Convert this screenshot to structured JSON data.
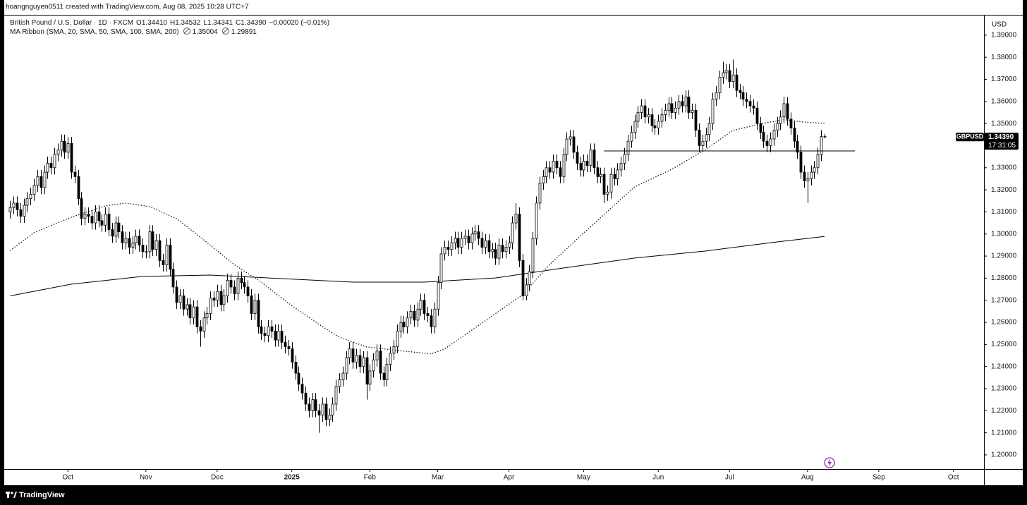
{
  "header": {
    "attribution": "hoangnguyen0511 created with TradingView.com, Aug 08, 2025 10:28 UTC+7",
    "footer_brand": "TradingView"
  },
  "chart_data": {
    "type": "candlestick",
    "title": "British Pound / U.S. Dollar · 1D · FXCM",
    "ohlc_labels": [
      "O1.34410",
      "H1.34532",
      "L1.34341",
      "C1.34390",
      "−0.00020 (−0.01%)"
    ],
    "indicator_title": "MA Ribbon (SMA, 20, SMA, 50, SMA, 100, SMA, 200)",
    "currency": "USD",
    "symbol": "GBPUSD",
    "last_price_label": "1.34390",
    "countdown": "17:31:05",
    "up_color": "#ffffff",
    "down_color": "#000000",
    "edge_color": "#000000",
    "open": [
      1.31,
      1.312,
      1.314,
      1.311,
      1.308,
      1.313,
      1.316,
      1.318,
      1.322,
      1.326,
      1.321,
      1.328,
      1.332,
      1.33,
      1.336,
      1.338,
      1.342,
      1.337,
      1.341,
      1.328,
      1.326,
      1.316,
      1.307,
      1.309,
      1.308,
      1.305,
      1.31,
      1.306,
      1.304,
      1.309,
      1.302,
      1.299,
      1.305,
      1.301,
      1.296,
      1.298,
      1.294,
      1.296,
      1.299,
      1.295,
      1.292,
      1.292,
      1.301,
      1.293,
      1.297,
      1.288,
      1.286,
      1.295,
      1.284,
      1.276,
      1.269,
      1.272,
      1.266,
      1.268,
      1.262,
      1.267,
      1.258,
      1.256,
      1.262,
      1.264,
      1.271,
      1.27,
      1.274,
      1.268,
      1.272,
      1.279,
      1.276,
      1.273,
      1.28,
      1.278,
      1.276,
      1.272,
      1.264,
      1.27,
      1.258,
      1.255,
      1.254,
      1.258,
      1.256,
      1.252,
      1.256,
      1.251,
      1.249,
      1.248,
      1.242,
      1.237,
      1.232,
      1.228,
      1.223,
      1.22,
      1.225,
      1.22,
      1.218,
      1.223,
      1.216,
      1.218,
      1.223,
      1.231,
      1.234,
      1.237,
      1.244,
      1.248,
      1.242,
      1.245,
      1.24,
      1.244,
      1.232,
      1.238,
      1.243,
      1.247,
      1.237,
      1.234,
      1.241,
      1.246,
      1.249,
      1.256,
      1.26,
      1.258,
      1.262,
      1.265,
      1.261,
      1.266,
      1.27,
      1.264,
      1.263,
      1.258,
      1.266,
      1.278,
      1.291,
      1.294,
      1.293,
      1.296,
      1.298,
      1.294,
      1.298,
      1.299,
      1.296,
      1.3,
      1.301,
      1.298,
      1.294,
      1.297,
      1.292,
      1.293,
      1.289,
      1.295,
      1.292,
      1.294,
      1.296,
      1.305,
      1.309,
      1.288,
      1.272,
      1.277,
      1.283,
      1.298,
      1.314,
      1.323,
      1.326,
      1.33,
      1.328,
      1.333,
      1.33,
      1.326,
      1.336,
      1.343,
      1.344,
      1.337,
      1.332,
      1.329,
      1.333,
      1.331,
      1.338,
      1.33,
      1.326,
      1.327,
      1.318,
      1.319,
      1.327,
      1.325,
      1.329,
      1.332,
      1.336,
      1.342,
      1.346,
      1.351,
      1.355,
      1.358,
      1.353,
      1.354,
      1.349,
      1.348,
      1.351,
      1.354,
      1.356,
      1.359,
      1.355,
      1.357,
      1.36,
      1.358,
      1.362,
      1.355,
      1.356,
      1.347,
      1.34,
      1.342,
      1.345,
      1.35,
      1.361,
      1.364,
      1.371,
      1.373,
      1.374,
      1.369,
      1.372,
      1.365,
      1.364,
      1.361,
      1.36,
      1.358,
      1.357,
      1.35,
      1.346,
      1.342,
      1.34,
      1.343,
      1.347,
      1.35,
      1.353,
      1.359,
      1.352,
      1.348,
      1.342,
      1.337,
      1.328,
      1.324,
      1.325,
      1.328,
      1.33,
      1.336,
      1.3441
    ],
    "high": [
      1.315,
      1.317,
      1.317,
      1.314,
      1.316,
      1.319,
      1.321,
      1.325,
      1.329,
      1.329,
      1.331,
      1.335,
      1.335,
      1.339,
      1.341,
      1.345,
      1.345,
      1.344,
      1.344,
      1.331,
      1.329,
      1.319,
      1.312,
      1.312,
      1.311,
      1.313,
      1.313,
      1.309,
      1.312,
      1.312,
      1.305,
      1.308,
      1.308,
      1.304,
      1.301,
      1.301,
      1.299,
      1.302,
      1.302,
      1.298,
      1.295,
      1.304,
      1.304,
      1.3,
      1.3,
      1.291,
      1.298,
      1.298,
      1.287,
      1.279,
      1.275,
      1.275,
      1.271,
      1.271,
      1.27,
      1.27,
      1.261,
      1.265,
      1.267,
      1.274,
      1.274,
      1.277,
      1.277,
      1.275,
      1.282,
      1.282,
      1.279,
      1.283,
      1.283,
      1.281,
      1.279,
      1.275,
      1.273,
      1.273,
      1.261,
      1.258,
      1.261,
      1.261,
      1.259,
      1.259,
      1.259,
      1.254,
      1.252,
      1.251,
      1.245,
      1.24,
      1.235,
      1.231,
      1.226,
      1.228,
      1.228,
      1.223,
      1.226,
      1.226,
      1.221,
      1.226,
      1.234,
      1.237,
      1.24,
      1.247,
      1.251,
      1.251,
      1.248,
      1.248,
      1.247,
      1.247,
      1.241,
      1.246,
      1.25,
      1.25,
      1.24,
      1.244,
      1.249,
      1.252,
      1.259,
      1.263,
      1.263,
      1.265,
      1.268,
      1.268,
      1.269,
      1.273,
      1.273,
      1.267,
      1.266,
      1.269,
      1.281,
      1.294,
      1.297,
      1.297,
      1.299,
      1.301,
      1.301,
      1.301,
      1.302,
      1.302,
      1.303,
      1.304,
      1.304,
      1.301,
      1.3,
      1.3,
      1.296,
      1.296,
      1.298,
      1.298,
      1.297,
      1.299,
      1.308,
      1.314,
      1.312,
      1.291,
      1.28,
      1.286,
      1.301,
      1.317,
      1.326,
      1.329,
      1.333,
      1.333,
      1.336,
      1.336,
      1.333,
      1.339,
      1.346,
      1.347,
      1.347,
      1.34,
      1.335,
      1.336,
      1.336,
      1.341,
      1.341,
      1.333,
      1.33,
      1.33,
      1.322,
      1.33,
      1.33,
      1.332,
      1.335,
      1.339,
      1.345,
      1.349,
      1.354,
      1.358,
      1.361,
      1.361,
      1.357,
      1.357,
      1.352,
      1.354,
      1.357,
      1.359,
      1.362,
      1.362,
      1.36,
      1.363,
      1.363,
      1.365,
      1.365,
      1.359,
      1.359,
      1.35,
      1.345,
      1.348,
      1.353,
      1.364,
      1.367,
      1.374,
      1.378,
      1.377,
      1.377,
      1.379,
      1.375,
      1.368,
      1.367,
      1.364,
      1.363,
      1.361,
      1.36,
      1.353,
      1.349,
      1.345,
      1.346,
      1.35,
      1.353,
      1.356,
      1.362,
      1.362,
      1.355,
      1.351,
      1.345,
      1.34,
      1.331,
      1.328,
      1.331,
      1.333,
      1.339,
      1.347,
      1.34532
    ],
    "low": [
      1.307,
      1.309,
      1.308,
      1.305,
      1.305,
      1.31,
      1.313,
      1.315,
      1.319,
      1.318,
      1.318,
      1.325,
      1.327,
      1.327,
      1.333,
      1.335,
      1.334,
      1.334,
      1.325,
      1.323,
      1.313,
      1.304,
      1.304,
      1.305,
      1.302,
      1.302,
      1.303,
      1.301,
      1.301,
      1.299,
      1.296,
      1.296,
      1.298,
      1.293,
      1.293,
      1.291,
      1.291,
      1.293,
      1.292,
      1.289,
      1.289,
      1.289,
      1.29,
      1.29,
      1.285,
      1.283,
      1.283,
      1.281,
      1.273,
      1.266,
      1.266,
      1.263,
      1.263,
      1.259,
      1.259,
      1.255,
      1.249,
      1.253,
      1.259,
      1.261,
      1.267,
      1.267,
      1.265,
      1.265,
      1.269,
      1.273,
      1.27,
      1.27,
      1.275,
      1.273,
      1.269,
      1.261,
      1.261,
      1.255,
      1.252,
      1.251,
      1.251,
      1.253,
      1.249,
      1.249,
      1.248,
      1.246,
      1.245,
      1.239,
      1.234,
      1.229,
      1.225,
      1.22,
      1.217,
      1.217,
      1.217,
      1.21,
      1.215,
      1.213,
      1.213,
      1.215,
      1.22,
      1.228,
      1.231,
      1.234,
      1.241,
      1.239,
      1.239,
      1.237,
      1.237,
      1.225,
      1.229,
      1.235,
      1.24,
      1.234,
      1.231,
      1.231,
      1.238,
      1.243,
      1.246,
      1.253,
      1.255,
      1.255,
      1.259,
      1.258,
      1.258,
      1.263,
      1.261,
      1.26,
      1.255,
      1.255,
      1.263,
      1.275,
      1.288,
      1.29,
      1.29,
      1.293,
      1.291,
      1.291,
      1.295,
      1.293,
      1.293,
      1.297,
      1.295,
      1.291,
      1.291,
      1.289,
      1.289,
      1.286,
      1.286,
      1.289,
      1.289,
      1.291,
      1.293,
      1.302,
      1.285,
      1.27,
      1.27,
      1.274,
      1.28,
      1.295,
      1.311,
      1.32,
      1.323,
      1.325,
      1.325,
      1.327,
      1.323,
      1.323,
      1.333,
      1.34,
      1.334,
      1.329,
      1.326,
      1.326,
      1.328,
      1.328,
      1.327,
      1.323,
      1.323,
      1.314,
      1.315,
      1.316,
      1.322,
      1.322,
      1.326,
      1.329,
      1.333,
      1.339,
      1.343,
      1.348,
      1.352,
      1.35,
      1.35,
      1.346,
      1.345,
      1.345,
      1.348,
      1.351,
      1.353,
      1.352,
      1.352,
      1.354,
      1.355,
      1.355,
      1.352,
      1.352,
      1.344,
      1.337,
      1.337,
      1.339,
      1.342,
      1.347,
      1.358,
      1.361,
      1.368,
      1.37,
      1.366,
      1.366,
      1.362,
      1.361,
      1.358,
      1.357,
      1.355,
      1.354,
      1.347,
      1.343,
      1.339,
      1.337,
      1.337,
      1.34,
      1.344,
      1.347,
      1.35,
      1.349,
      1.345,
      1.339,
      1.334,
      1.325,
      1.321,
      1.314,
      1.322,
      1.325,
      1.327,
      1.333,
      1.34341
    ],
    "close": [
      1.312,
      1.314,
      1.311,
      1.308,
      1.313,
      1.316,
      1.318,
      1.322,
      1.326,
      1.321,
      1.328,
      1.332,
      1.33,
      1.336,
      1.338,
      1.342,
      1.337,
      1.341,
      1.328,
      1.326,
      1.316,
      1.307,
      1.309,
      1.308,
      1.305,
      1.31,
      1.306,
      1.304,
      1.309,
      1.302,
      1.299,
      1.305,
      1.301,
      1.296,
      1.298,
      1.294,
      1.296,
      1.299,
      1.295,
      1.292,
      1.292,
      1.301,
      1.293,
      1.297,
      1.288,
      1.286,
      1.295,
      1.284,
      1.276,
      1.269,
      1.272,
      1.266,
      1.268,
      1.262,
      1.267,
      1.258,
      1.256,
      1.262,
      1.264,
      1.271,
      1.27,
      1.274,
      1.268,
      1.272,
      1.279,
      1.276,
      1.273,
      1.28,
      1.278,
      1.276,
      1.272,
      1.264,
      1.27,
      1.258,
      1.255,
      1.254,
      1.258,
      1.256,
      1.252,
      1.256,
      1.251,
      1.249,
      1.248,
      1.242,
      1.237,
      1.232,
      1.228,
      1.223,
      1.22,
      1.225,
      1.22,
      1.218,
      1.223,
      1.216,
      1.218,
      1.223,
      1.231,
      1.234,
      1.237,
      1.244,
      1.248,
      1.242,
      1.245,
      1.24,
      1.244,
      1.232,
      1.238,
      1.243,
      1.247,
      1.237,
      1.234,
      1.241,
      1.246,
      1.249,
      1.256,
      1.26,
      1.258,
      1.262,
      1.265,
      1.261,
      1.266,
      1.27,
      1.264,
      1.263,
      1.258,
      1.266,
      1.278,
      1.291,
      1.294,
      1.293,
      1.296,
      1.298,
      1.294,
      1.298,
      1.299,
      1.296,
      1.3,
      1.301,
      1.298,
      1.294,
      1.297,
      1.292,
      1.293,
      1.289,
      1.295,
      1.292,
      1.294,
      1.296,
      1.305,
      1.309,
      1.288,
      1.272,
      1.277,
      1.283,
      1.298,
      1.314,
      1.323,
      1.326,
      1.33,
      1.328,
      1.333,
      1.33,
      1.326,
      1.336,
      1.343,
      1.344,
      1.337,
      1.332,
      1.329,
      1.333,
      1.331,
      1.338,
      1.33,
      1.326,
      1.327,
      1.318,
      1.319,
      1.327,
      1.325,
      1.329,
      1.332,
      1.336,
      1.342,
      1.346,
      1.351,
      1.355,
      1.358,
      1.353,
      1.354,
      1.349,
      1.348,
      1.351,
      1.354,
      1.356,
      1.359,
      1.355,
      1.357,
      1.36,
      1.358,
      1.362,
      1.355,
      1.356,
      1.347,
      1.34,
      1.342,
      1.345,
      1.35,
      1.361,
      1.364,
      1.371,
      1.373,
      1.374,
      1.369,
      1.372,
      1.365,
      1.364,
      1.361,
      1.36,
      1.358,
      1.357,
      1.35,
      1.346,
      1.342,
      1.34,
      1.343,
      1.347,
      1.35,
      1.353,
      1.359,
      1.352,
      1.348,
      1.342,
      1.337,
      1.328,
      1.324,
      1.325,
      1.328,
      1.33,
      1.336,
      1.3441,
      1.3439
    ],
    "series": [
      {
        "color": "#000000",
        "style": "dotted",
        "last_label": "1.35004",
        "x": [
          0,
          7,
          18,
          28,
          34,
          41,
          49,
          57,
          66,
          74,
          82,
          91,
          97,
          105,
          114,
          124,
          128,
          134,
          143,
          151,
          159,
          168,
          176,
          184,
          195,
          205,
          213,
          222,
          228,
          234,
          240
        ],
        "values": [
          1.2925,
          1.3006,
          1.3076,
          1.3127,
          1.314,
          1.3124,
          1.307,
          1.2974,
          1.2862,
          1.2782,
          1.2687,
          1.2591,
          1.2533,
          1.2489,
          1.2473,
          1.2457,
          1.2479,
          1.2543,
          1.2639,
          1.2725,
          1.2862,
          1.299,
          1.3102,
          1.3213,
          1.3293,
          1.3383,
          1.3469,
          1.3501,
          1.3517,
          1.3507,
          1.35004
        ]
      },
      {
        "color": "#000000",
        "style": "solid",
        "last_label": "1.29891",
        "x": [
          0,
          18,
          39,
          59,
          80,
          101,
          122,
          143,
          163,
          184,
          205,
          226,
          240
        ],
        "values": [
          1.272,
          1.2773,
          1.2808,
          1.2814,
          1.2798,
          1.2782,
          1.2782,
          1.2801,
          1.2846,
          1.2891,
          1.2923,
          1.2964,
          1.29891
        ]
      }
    ],
    "hline": {
      "value": 1.3376,
      "x": [
        175,
        249
      ]
    },
    "xlim": [
      -3,
      287
    ],
    "ylim": [
      1.1936,
      1.3989
    ],
    "xticks": [
      {
        "value": 17,
        "label": "Oct"
      },
      {
        "value": 40,
        "label": "Nov"
      },
      {
        "value": 61,
        "label": "Dec"
      },
      {
        "value": 83,
        "label": "2025"
      },
      {
        "value": 106,
        "label": "Feb"
      },
      {
        "value": 126,
        "label": "Mar"
      },
      {
        "value": 147,
        "label": "Apr"
      },
      {
        "value": 169,
        "label": "May"
      },
      {
        "value": 191,
        "label": "Jun"
      },
      {
        "value": 212,
        "label": "Jul"
      },
      {
        "value": 235,
        "label": "Aug"
      },
      {
        "value": 256,
        "label": "Sep"
      },
      {
        "value": 278,
        "label": "Oct"
      }
    ],
    "yticks": [
      {
        "value": 1.2,
        "label": "1.20000"
      },
      {
        "value": 1.21,
        "label": "1.21000"
      },
      {
        "value": 1.22,
        "label": "1.22000"
      },
      {
        "value": 1.23,
        "label": "1.23000"
      },
      {
        "value": 1.24,
        "label": "1.24000"
      },
      {
        "value": 1.25,
        "label": "1.25000"
      },
      {
        "value": 1.26,
        "label": "1.26000"
      },
      {
        "value": 1.27,
        "label": "1.27000"
      },
      {
        "value": 1.28,
        "label": "1.28000"
      },
      {
        "value": 1.29,
        "label": "1.29000"
      },
      {
        "value": 1.3,
        "label": "1.30000"
      },
      {
        "value": 1.31,
        "label": "1.31000"
      },
      {
        "value": 1.32,
        "label": "1.32000"
      },
      {
        "value": 1.33,
        "label": "1.33000"
      },
      {
        "value": 1.34,
        "label": "1.34000"
      },
      {
        "value": 1.35,
        "label": "1.35000"
      },
      {
        "value": 1.36,
        "label": "1.36000"
      },
      {
        "value": 1.37,
        "label": "1.37000"
      },
      {
        "value": 1.38,
        "label": "1.38000"
      },
      {
        "value": 1.39,
        "label": "1.39000"
      }
    ]
  }
}
